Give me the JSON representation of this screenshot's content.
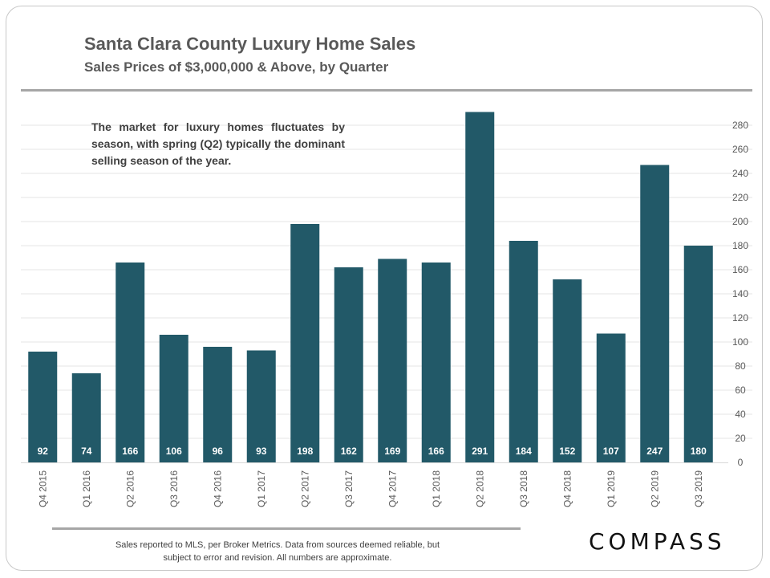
{
  "header": {
    "title": "Santa Clara County Luxury Home Sales",
    "subtitle": "Sales Prices of $3,000,000 & Above, by Quarter"
  },
  "annotation": "The market for luxury homes fluctuates by season, with spring (Q2) typically the dominant selling season of the year.",
  "footer": {
    "note_line1": "Sales reported to MLS, per Broker Metrics. Data from sources deemed reliable, but",
    "note_line2": "subject to error and revision. All numbers are approximate.",
    "logo": "COMPASS"
  },
  "colors": {
    "bar": "#225968",
    "text": "#595959",
    "grid": "#e6e6e6"
  },
  "chart_data": {
    "type": "bar",
    "title": "Santa Clara County Luxury Home Sales",
    "subtitle": "Sales Prices of $3,000,000 & Above, by Quarter",
    "xlabel": "",
    "ylabel": "",
    "categories": [
      "Q4 2015",
      "Q1 2016",
      "Q2 2016",
      "Q3 2016",
      "Q4 2016",
      "Q1 2017",
      "Q2 2017",
      "Q3 2017",
      "Q4 2017",
      "Q1 2018",
      "Q2 2018",
      "Q3 2018",
      "Q4 2018",
      "Q1 2019",
      "Q2 2019",
      "Q3 2019"
    ],
    "values": [
      92,
      74,
      166,
      106,
      96,
      93,
      198,
      162,
      169,
      166,
      291,
      184,
      152,
      107,
      247,
      180
    ],
    "ylim": [
      0,
      290
    ],
    "yticks": [
      0,
      20,
      40,
      60,
      80,
      100,
      120,
      140,
      160,
      180,
      200,
      220,
      240,
      260,
      280
    ],
    "y_axis_side": "right",
    "grid": true,
    "data_labels": "inside-base"
  }
}
